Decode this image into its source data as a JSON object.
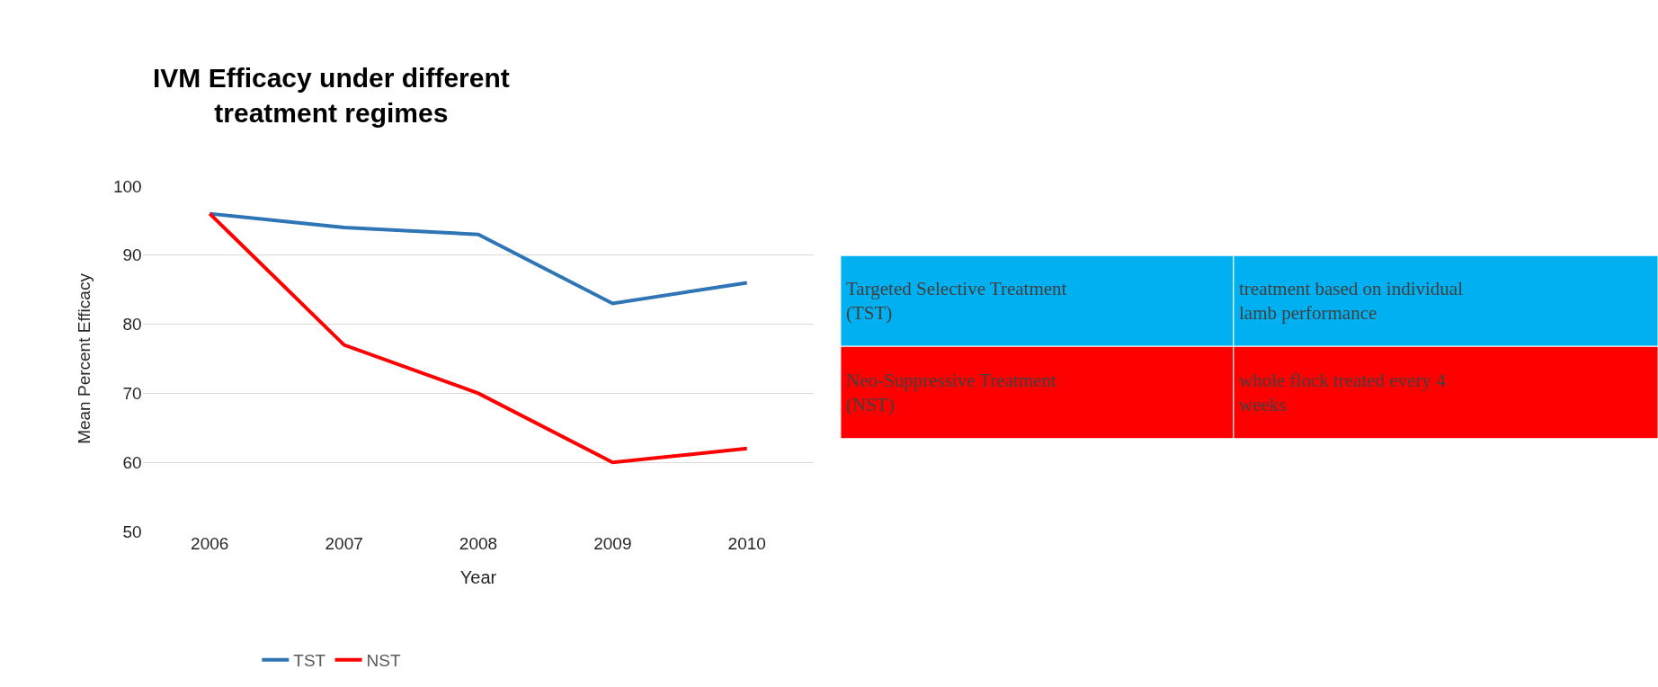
{
  "chart_data": [
    {
      "type": "line",
      "title": "IVM Efficacy under different\ntreatment regimes",
      "xlabel": "Year",
      "ylabel": "Mean Percent Efficacy",
      "categories": [
        "2006",
        "2007",
        "2008",
        "2009",
        "2010"
      ],
      "series": [
        {
          "name": "TST",
          "color": "#2e75b6",
          "values": [
            96,
            94,
            93,
            83,
            86
          ]
        },
        {
          "name": "NST",
          "color": "#ff0000",
          "values": [
            96,
            77,
            70,
            60,
            62
          ]
        }
      ],
      "ylim": [
        50,
        100
      ],
      "yticks": [
        50,
        60,
        70,
        80,
        90,
        100
      ],
      "grid": "y",
      "legend": "bottom",
      "marker": "none",
      "line_style": "solid"
    },
    {
      "type": "other",
      "colors": [
        "#00b0f0",
        "#ff0000"
      ],
      "annotations": [
        "Targeted Selective Treatment (TST)",
        "treatment based on individual lamb performance",
        "Neo-Suppressive Treatment (NST)",
        "whole flock treated every 4 weeks"
      ]
    }
  ]
}
